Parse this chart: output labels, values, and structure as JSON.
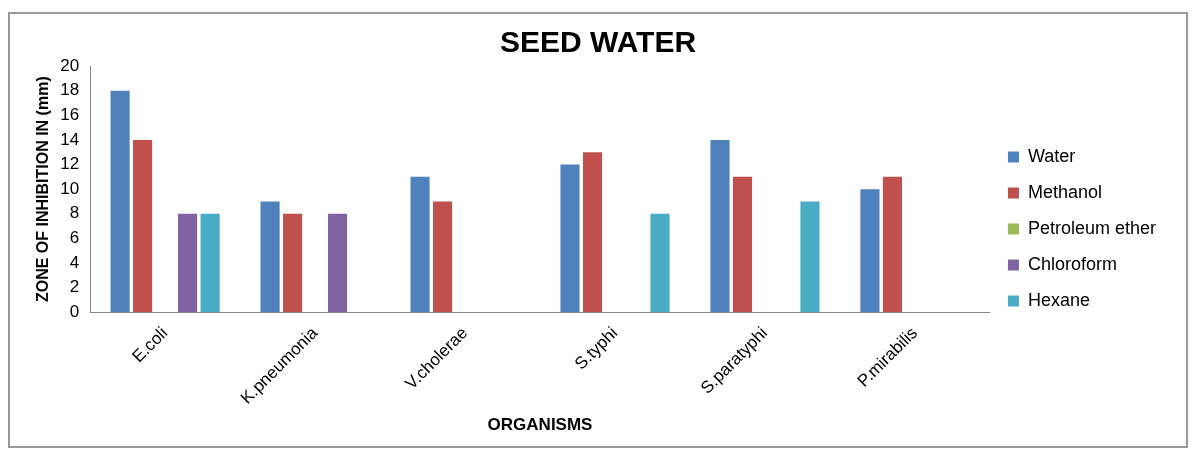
{
  "chart_data": {
    "type": "bar",
    "title": "SEED WATER",
    "xlabel": "ORGANISMS",
    "ylabel": "ZONE OF INHIBITION IN (mm)",
    "categories": [
      "E.coli",
      "K.pneumonia",
      "V.cholerae",
      "S.typhi",
      "S.paratyphi",
      "P.mirabilis"
    ],
    "series": [
      {
        "name": "Water",
        "color": "#4f81bd",
        "values": [
          18,
          9,
          11,
          12,
          14,
          10
        ]
      },
      {
        "name": "Methanol",
        "color": "#c0504d",
        "values": [
          14,
          8,
          9,
          13,
          11,
          11
        ]
      },
      {
        "name": "Petroleum ether",
        "color": "#9bbb59",
        "values": [
          0,
          0,
          0,
          0,
          0,
          0
        ]
      },
      {
        "name": "Chloroform",
        "color": "#8064a2",
        "values": [
          8,
          8,
          0,
          0,
          0,
          0
        ]
      },
      {
        "name": "Hexane",
        "color": "#4bacc6",
        "values": [
          8,
          0,
          0,
          8,
          9,
          0
        ]
      }
    ],
    "ylim": [
      0,
      20
    ],
    "yticks": [
      0,
      2,
      4,
      6,
      8,
      10,
      12,
      14,
      16,
      18,
      20
    ],
    "grid": false,
    "legend": "right"
  }
}
